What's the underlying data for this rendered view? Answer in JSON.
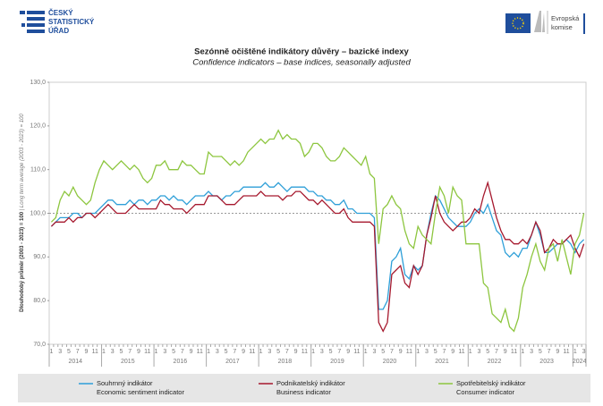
{
  "header": {
    "logo_left": [
      "ČESKÝ",
      "STATISTICKÝ",
      "ÚŘAD"
    ],
    "logo_right": [
      "Evropská",
      "komise"
    ]
  },
  "chart_data": {
    "type": "line",
    "title": "Sezónně očištěné indikátory důvěry – bazické indexy",
    "subtitle": "Confidence indicators – base indices, seasonally adjusted",
    "y_label": "Dlouhodobý průměr (2003 - 2023) = 100",
    "y_label_en": "| Long term average (2003 - 2023) = 100",
    "categories": [
      1,
      null,
      3,
      null,
      5,
      null,
      7,
      null,
      9,
      null,
      11,
      null,
      1,
      null,
      3,
      null,
      5,
      null,
      7,
      null,
      9,
      null,
      11,
      null,
      1,
      null,
      3,
      null,
      5,
      null,
      7,
      null,
      9,
      null,
      11,
      null,
      1,
      null,
      3,
      null,
      5,
      null,
      7,
      null,
      9,
      null,
      11,
      null,
      1,
      null,
      3,
      null,
      5,
      null,
      7,
      null,
      9,
      null,
      11,
      null,
      1,
      null,
      3,
      null,
      5,
      null,
      7,
      null,
      9,
      null,
      11,
      null,
      1,
      null,
      3,
      null,
      5,
      null,
      7,
      null,
      9,
      null,
      11,
      null,
      1,
      null,
      3,
      null,
      5,
      null,
      7,
      null,
      9,
      null,
      11,
      null,
      1,
      null,
      3,
      null,
      5,
      null,
      7,
      null,
      9,
      null,
      11,
      null,
      1,
      null,
      3,
      null,
      5,
      null,
      7,
      null,
      9,
      null,
      11,
      null,
      1,
      null,
      3
    ],
    "years": [
      2014,
      2015,
      2016,
      2017,
      2018,
      2019,
      2020,
      2021,
      2022,
      2023,
      2024
    ],
    "ylim": [
      70,
      130
    ],
    "yticks": [
      {
        "value": 70,
        "label": "70,0"
      },
      {
        "value": 80,
        "label": "80,0"
      },
      {
        "value": 90,
        "label": "90,0"
      },
      {
        "value": 100,
        "label": "100,0"
      },
      {
        "value": 110,
        "label": "110,0"
      },
      {
        "value": 120,
        "label": "120,0"
      },
      {
        "value": 130,
        "label": "130,0"
      }
    ],
    "reference_line": 100,
    "series": [
      {
        "name": "Souhrnný indikátor",
        "name_en": "Economic sentiment indicator",
        "color": "#2e9fd8",
        "values": [
          97,
          98,
          99,
          99,
          99,
          100,
          100,
          99,
          100,
          100,
          100,
          101,
          102,
          103,
          103,
          102,
          102,
          102,
          103,
          102,
          103,
          103,
          102,
          103,
          103,
          104,
          104,
          103,
          104,
          103,
          103,
          102,
          103,
          104,
          104,
          104,
          105,
          104,
          104,
          103,
          104,
          104,
          105,
          105,
          106,
          106,
          106,
          106,
          106,
          107,
          106,
          106,
          107,
          106,
          105,
          106,
          106,
          106,
          106,
          105,
          105,
          104,
          104,
          103,
          103,
          102,
          102,
          103,
          101,
          101,
          100,
          100,
          100,
          100,
          99,
          78,
          78,
          80,
          89,
          90,
          92,
          86,
          85,
          88,
          87,
          88,
          95,
          100,
          104,
          103,
          101,
          99,
          98,
          97,
          97,
          97,
          98,
          100,
          101,
          100,
          102,
          99,
          96,
          95,
          91,
          90,
          91,
          90,
          92,
          92,
          95,
          98,
          95,
          91,
          91,
          92,
          93,
          93,
          94,
          93,
          91,
          93,
          94
        ]
      },
      {
        "name": "Podnikatelský indikátor",
        "name_en": "Business indicator",
        "color": "#a6192e",
        "values": [
          97,
          98,
          98,
          98,
          99,
          98,
          99,
          99,
          100,
          100,
          99,
          100,
          101,
          102,
          101,
          100,
          100,
          100,
          101,
          102,
          101,
          101,
          101,
          101,
          101,
          103,
          102,
          102,
          101,
          101,
          101,
          100,
          101,
          102,
          102,
          102,
          104,
          104,
          104,
          103,
          102,
          102,
          102,
          103,
          104,
          104,
          104,
          104,
          105,
          104,
          104,
          104,
          104,
          103,
          104,
          104,
          105,
          105,
          104,
          103,
          103,
          102,
          103,
          102,
          101,
          100,
          100,
          101,
          99,
          98,
          98,
          98,
          98,
          98,
          97,
          75,
          73,
          75,
          86,
          87,
          88,
          84,
          83,
          88,
          86,
          88,
          95,
          99,
          104,
          100,
          98,
          97,
          96,
          97,
          98,
          98,
          99,
          101,
          100,
          104,
          107,
          103,
          99,
          96,
          94,
          94,
          93,
          93,
          94,
          93,
          95,
          98,
          96,
          91,
          92,
          94,
          93,
          93,
          94,
          95,
          92,
          90,
          93
        ]
      },
      {
        "name": "Spotřebitelský indikátor",
        "name_en": "Consumer indicator",
        "color": "#8dc63f",
        "values": [
          98,
          99,
          103,
          105,
          104,
          106,
          104,
          103,
          102,
          103,
          107,
          110,
          112,
          111,
          110,
          111,
          112,
          111,
          110,
          111,
          110,
          108,
          107,
          108,
          111,
          111,
          112,
          110,
          110,
          110,
          112,
          111,
          111,
          110,
          109,
          109,
          114,
          113,
          113,
          113,
          112,
          111,
          112,
          111,
          112,
          114,
          115,
          116,
          117,
          116,
          117,
          117,
          119,
          117,
          118,
          117,
          117,
          116,
          113,
          114,
          116,
          116,
          115,
          113,
          112,
          112,
          113,
          115,
          114,
          113,
          112,
          111,
          113,
          109,
          108,
          93,
          101,
          102,
          104,
          102,
          101,
          96,
          93,
          92,
          97,
          95,
          94,
          93,
          100,
          106,
          104,
          100,
          106,
          104,
          103,
          93,
          93,
          93,
          93,
          84,
          83,
          77,
          76,
          75,
          78,
          74,
          73,
          76,
          83,
          86,
          90,
          93,
          89,
          87,
          92,
          93,
          89,
          94,
          90,
          86,
          93,
          95,
          100
        ]
      }
    ]
  }
}
